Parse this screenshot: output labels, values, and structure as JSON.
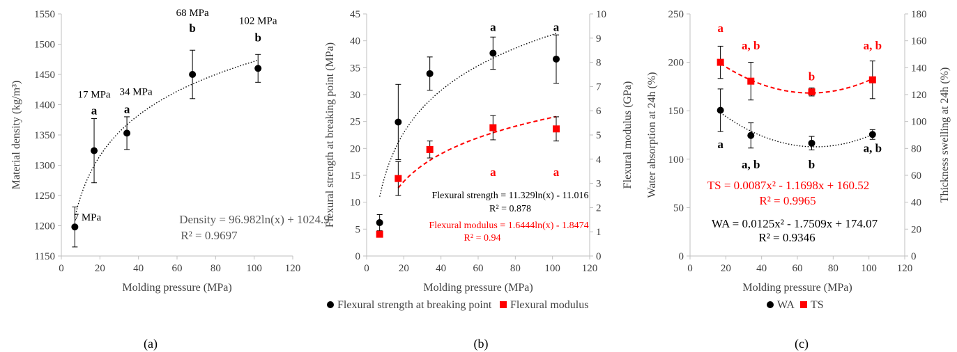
{
  "panels": [
    {
      "caption": "(a)",
      "chart_data": {
        "type": "scatter",
        "xlabel": "Molding pressure (MPa)",
        "ylabel": "Material density (kg/m³)",
        "xlim": [
          0,
          120
        ],
        "ylim": [
          1150,
          1550
        ],
        "xticks": [
          0,
          20,
          40,
          60,
          80,
          100,
          120
        ],
        "yticks": [
          1150,
          1200,
          1250,
          1300,
          1350,
          1400,
          1450,
          1500,
          1550
        ],
        "grid": false,
        "series": [
          {
            "color": "#000000",
            "marker": "circle",
            "points": [
              {
                "x": 7,
                "y": 1198,
                "err": 33
              },
              {
                "x": 17,
                "y": 1324,
                "err": 53
              },
              {
                "x": 34,
                "y": 1353,
                "err": 27
              },
              {
                "x": 68,
                "y": 1450,
                "err": 40
              },
              {
                "x": 102,
                "y": 1460,
                "err": 23
              }
            ],
            "trendline": {
              "type": "log",
              "a": 96.982,
              "b": 1024.9,
              "style": "dotted",
              "color": "#000000",
              "x_range": [
                7,
                102
              ]
            }
          }
        ],
        "point_labels": [
          {
            "x": 7,
            "y": 1198,
            "text": "7 MPa"
          },
          {
            "x": 17,
            "y": 1324,
            "text": "17 MPa"
          },
          {
            "x": 34,
            "y": 1353,
            "text": "34 MPa"
          },
          {
            "x": 68,
            "y": 1450,
            "text": "68 MPa"
          },
          {
            "x": 102,
            "y": 1460,
            "text": "102 MPa"
          }
        ],
        "letters": [
          {
            "x": 17,
            "y": 1324,
            "text": "a",
            "color": "#000000"
          },
          {
            "x": 34,
            "y": 1353,
            "text": "a",
            "color": "#000000"
          },
          {
            "x": 68,
            "y": 1450,
            "text": "b",
            "color": "#000000"
          },
          {
            "x": 102,
            "y": 1460,
            "text": "b",
            "color": "#000000"
          }
        ],
        "equations": [
          {
            "text": "Density = 96.982ln(x) + 1024.9",
            "color": "#595959"
          },
          {
            "text": "R² = 0.9697",
            "color": "#595959"
          }
        ]
      }
    },
    {
      "caption": "(b)",
      "chart_data": {
        "type": "scatter",
        "xlabel": "Molding pressure (MPa)",
        "ylabel": "Flexural strength at breaking point (MPa)",
        "y2label": "Flexural modulus (GPa)",
        "xlim": [
          0,
          120
        ],
        "ylim": [
          0,
          45
        ],
        "y2lim": [
          0,
          10
        ],
        "xticks": [
          0,
          20,
          40,
          60,
          80,
          100,
          120
        ],
        "yticks": [
          0,
          5,
          10,
          15,
          20,
          25,
          30,
          35,
          40,
          45
        ],
        "y2ticks": [
          0,
          1,
          2,
          3,
          4,
          5,
          6,
          7,
          8,
          9,
          10
        ],
        "grid": false,
        "legend": "bottom",
        "series": [
          {
            "name": "Flexural strength at breaking point",
            "axis": "left",
            "color": "#000000",
            "marker": "circle",
            "points": [
              {
                "x": 7,
                "y": 6.2,
                "err": 1.5
              },
              {
                "x": 17,
                "y": 24.9,
                "err": 7
              },
              {
                "x": 34,
                "y": 33.9,
                "err": 3.1
              },
              {
                "x": 68,
                "y": 37.7,
                "err": 3
              },
              {
                "x": 102,
                "y": 36.6,
                "err": 4.5
              }
            ],
            "trendline": {
              "type": "log",
              "a": 11.329,
              "b": -11.016,
              "style": "dotted",
              "color": "#000000",
              "x_range": [
                7,
                102
              ]
            }
          },
          {
            "name": "Flexural modulus",
            "axis": "right",
            "color": "#ff0000",
            "marker": "square",
            "points": [
              {
                "x": 7,
                "y": 0.9,
                "err": 0.12
              },
              {
                "x": 17,
                "y": 3.2,
                "err": 0.7
              },
              {
                "x": 34,
                "y": 4.4,
                "err": 0.35
              },
              {
                "x": 68,
                "y": 5.3,
                "err": 0.5
              },
              {
                "x": 102,
                "y": 5.25,
                "err": 0.5
              }
            ],
            "trendline": {
              "type": "log",
              "a": 1.6444,
              "b": -1.8474,
              "style": "dashed",
              "color": "#ff0000",
              "x_range": [
                17,
                102
              ]
            }
          }
        ],
        "letters": [
          {
            "x": 68,
            "y": 42.5,
            "text": "a",
            "color": "#000000"
          },
          {
            "x": 102,
            "y": 42.5,
            "text": "a",
            "color": "#000000"
          },
          {
            "x": 68,
            "y": 15.5,
            "text": "a",
            "color": "#ff0000"
          },
          {
            "x": 102,
            "y": 15.5,
            "text": "a",
            "color": "#ff0000"
          }
        ],
        "equations": [
          {
            "text": "Flexural strength = 11.329ln(x) - 11.016",
            "color": "#000000"
          },
          {
            "text": "R² = 0.878",
            "color": "#000000"
          },
          {
            "text": "Flexural modulus = 1.6444ln(x) - 1.8474",
            "color": "#ff0000"
          },
          {
            "text": "R² = 0.94",
            "color": "#ff0000"
          }
        ]
      }
    },
    {
      "caption": "(c)",
      "chart_data": {
        "type": "scatter",
        "xlabel": "Molding pressure (MPa)",
        "ylabel": "Water absorption at 24h (%)",
        "y2label": "Thickness swelling at 24h (%)",
        "xlim": [
          0,
          120
        ],
        "ylim": [
          0,
          250
        ],
        "y2lim": [
          0,
          180
        ],
        "xticks": [
          0,
          20,
          40,
          60,
          80,
          100,
          120
        ],
        "yticks": [
          0,
          50,
          100,
          150,
          200,
          250
        ],
        "y2ticks": [
          0,
          20,
          40,
          60,
          80,
          100,
          120,
          140,
          160,
          180
        ],
        "grid": false,
        "legend": "bottom",
        "series": [
          {
            "name": "WA",
            "axis": "left",
            "color": "#000000",
            "marker": "circle",
            "points": [
              {
                "x": 17,
                "y": 150.5,
                "err": 22
              },
              {
                "x": 34,
                "y": 124.5,
                "err": 13
              },
              {
                "x": 68,
                "y": 116.5,
                "err": 7
              },
              {
                "x": 102,
                "y": 125.5,
                "err": 5
              }
            ],
            "trendline": {
              "type": "poly2",
              "a": 0.0125,
              "b": -1.7509,
              "c": 174.07,
              "style": "dotted",
              "color": "#000000",
              "x_range": [
                17,
                102
              ]
            }
          },
          {
            "name": "TS",
            "axis": "right",
            "color": "#ff0000",
            "marker": "square",
            "points": [
              {
                "x": 17,
                "y": 144,
                "err": 12
              },
              {
                "x": 34,
                "y": 130,
                "err": 14
              },
              {
                "x": 68,
                "y": 122,
                "err": 3
              },
              {
                "x": 102,
                "y": 131,
                "err": 14
              }
            ],
            "trendline": {
              "type": "poly2",
              "a": 0.0087,
              "b": -1.1698,
              "c": 160.52,
              "style": "dashed",
              "color": "#ff0000",
              "x_range": [
                17,
                102
              ]
            }
          }
        ],
        "letters": [
          {
            "x": 17,
            "y": 235,
            "text": "a",
            "color": "#ff0000"
          },
          {
            "x": 34,
            "y": 217,
            "text": "a, b",
            "color": "#ff0000"
          },
          {
            "x": 68,
            "y": 185,
            "text": "b",
            "color": "#ff0000"
          },
          {
            "x": 102,
            "y": 217,
            "text": "a, b",
            "color": "#ff0000"
          },
          {
            "x": 17,
            "y": 115,
            "text": "a",
            "color": "#000000"
          },
          {
            "x": 34,
            "y": 94,
            "text": "a, b",
            "color": "#000000"
          },
          {
            "x": 68,
            "y": 94,
            "text": "b",
            "color": "#000000"
          },
          {
            "x": 102,
            "y": 111,
            "text": "a, b",
            "color": "#000000"
          }
        ],
        "equations": [
          {
            "text": "TS = 0.0087x² - 1.1698x + 160.52",
            "color": "#ff0000"
          },
          {
            "text": "R² = 0.9965",
            "color": "#ff0000"
          },
          {
            "text": "WA = 0.0125x² - 1.7509x + 174.07",
            "color": "#000000"
          },
          {
            "text": "R² = 0.9346",
            "color": "#000000"
          }
        ]
      }
    }
  ]
}
